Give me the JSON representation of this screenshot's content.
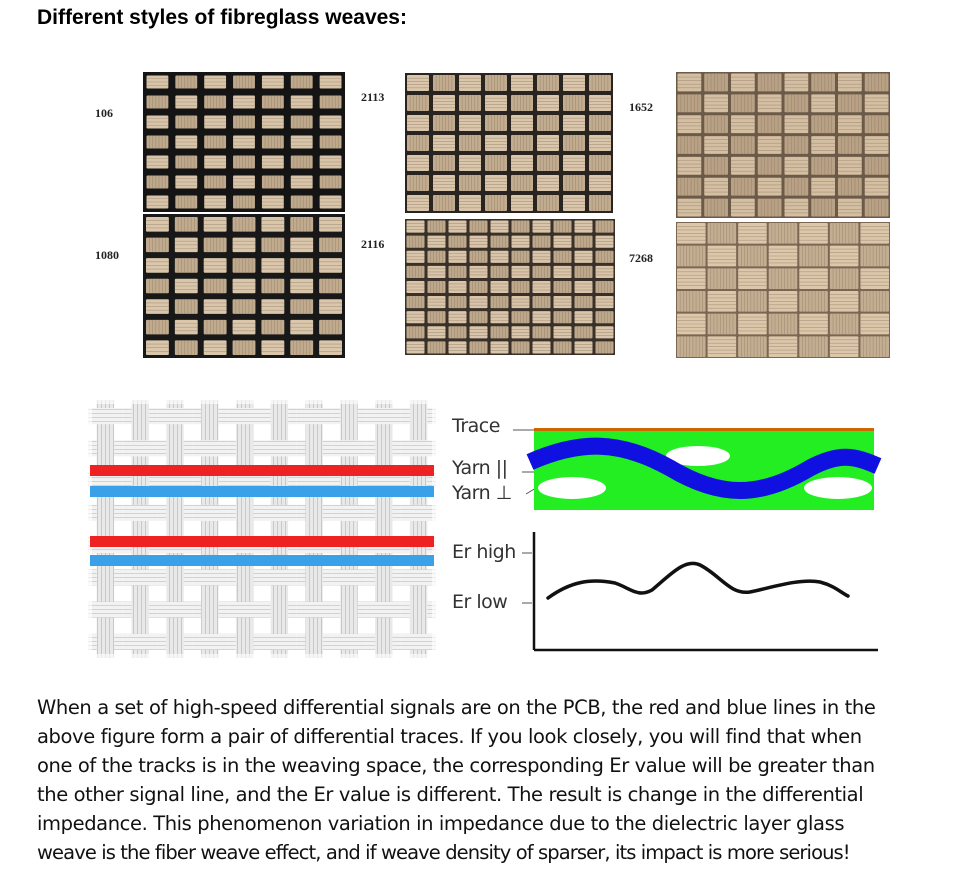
{
  "heading": "Different styles of fibreglass weaves:",
  "weave_styles": [
    {
      "label": "106"
    },
    {
      "label": "2113"
    },
    {
      "label": "1652"
    },
    {
      "label": "1080"
    },
    {
      "label": "2116"
    },
    {
      "label": "7268"
    }
  ],
  "diagram": {
    "trace_label": "Trace",
    "yarn_parallel_label": "Yarn ||",
    "yarn_perp_label": "Yarn ⊥",
    "er_high_label": "Er high",
    "er_low_label": "Er low",
    "colors": {
      "trace_red": "#ee2222",
      "trace_blue": "#3aa0e8",
      "dielectric_green": "#22ee22",
      "yarn_blue": "#1010e0",
      "copper": "#cc6600"
    }
  },
  "paragraph_lines": [
    "When a set of high-speed differential signals are on the PCB, the red and blue lines in the",
    "above figure form a pair of differential traces. If you look closely, you will find that when",
    "one of the tracks is in the weaving space, the corresponding Er value will be greater than",
    "the other signal line, and the Er value is different. The result is change in the differential",
    "impedance. This phenomenon variation in impedance due to the dielectric layer glass",
    "weave is the fiber weave effect, and if weave density of sparser, its impact is more serious!"
  ]
}
